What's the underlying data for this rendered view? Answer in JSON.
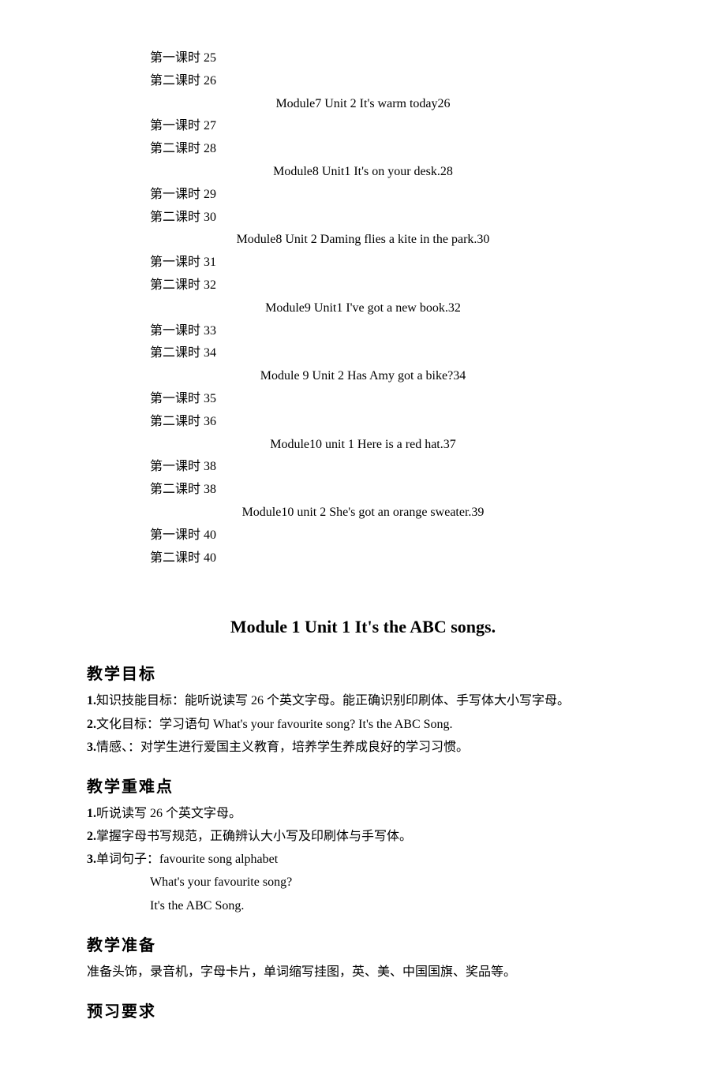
{
  "toc": [
    {
      "type": "left",
      "text": "第一课时 25"
    },
    {
      "type": "left",
      "text": "第二课时 26"
    },
    {
      "type": "center",
      "text": "Module7 Unit 2 It's warm today26"
    },
    {
      "type": "left",
      "text": "第一课时 27"
    },
    {
      "type": "left",
      "text": "第二课时 28"
    },
    {
      "type": "center",
      "text": "Module8 Unit1 It's on your desk.28"
    },
    {
      "type": "left",
      "text": "第一课时 29"
    },
    {
      "type": "left",
      "text": "第二课时 30"
    },
    {
      "type": "center",
      "text": "Module8 Unit 2 Daming flies a kite in the park.30"
    },
    {
      "type": "left",
      "text": "第一课时 31"
    },
    {
      "type": "left",
      "text": "第二课时 32"
    },
    {
      "type": "center",
      "text": "Module9 Unit1 I've got a new book.32"
    },
    {
      "type": "left",
      "text": "第一课时 33"
    },
    {
      "type": "left",
      "text": "第二课时 34"
    },
    {
      "type": "center",
      "text": "Module 9 Unit 2 Has Amy got a bike?34"
    },
    {
      "type": "left",
      "text": "第一课时 35"
    },
    {
      "type": "left",
      "text": "第二课时 36"
    },
    {
      "type": "center",
      "text": "Module10 unit 1 Here is a red hat.37"
    },
    {
      "type": "left",
      "text": "第一课时 38"
    },
    {
      "type": "left",
      "text": "第二课时 38"
    },
    {
      "type": "center",
      "text": "Module10 unit 2 She's got an orange sweater.39"
    },
    {
      "type": "left",
      "text": "第一课时 40"
    },
    {
      "type": "left",
      "text": "第二课时 40"
    }
  ],
  "title": "Module 1 Unit 1 It's the ABC songs.",
  "sections": {
    "s1": {
      "heading": "教学目标",
      "lines": [
        "1.知识技能目标：能听说读写 26 个英文字母。能正确识别印刷体、手写体大小写字母。",
        "2.文化目标：学习语句 What's your favourite song? It's the ABC Song.",
        "3.情感、：对学生进行爱国主义教育，培养学生养成良好的学习习惯。"
      ]
    },
    "s2": {
      "heading": "教学重难点",
      "lines": [
        "1.听说读写 26 个英文字母。",
        "2.掌握字母书写规范，正确辨认大小写及印刷体与手写体。",
        "3.单词句子：favourite    song   alphabet"
      ],
      "indented": [
        "What's your favourite song?",
        "It's the ABC Song."
      ]
    },
    "s3": {
      "heading": "教学准备",
      "lines": [
        "准备头饰，录音机，字母卡片，单词缩写挂图，英、美、中国国旗、奖品等。"
      ]
    },
    "s4": {
      "heading": "预习要求"
    }
  }
}
